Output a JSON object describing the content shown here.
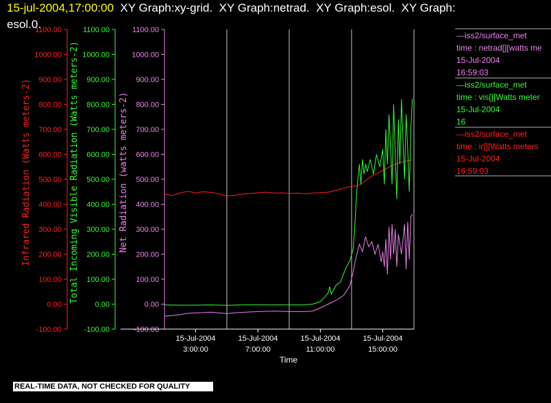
{
  "header": {
    "timestamp": "15-jul-2004,17:00:00",
    "line1_rest": "  XY Graph:xy-grid.  XY Graph:netrad.  XY Graph:esol.  XY Graph:",
    "line2": "esol.0."
  },
  "quality_banner": "REAL-TIME DATA, NOT CHECKED FOR QUALITY",
  "colors": {
    "ir": "#ff2020",
    "vis": "#33ff33",
    "net": "#ee82ee",
    "grid": "#c8c8c8",
    "axis": "#ffffff"
  },
  "legend": [
    {
      "line1": "—iss2/surface_met",
      "line2": "time : netrad[][watts me",
      "line3": "15-Jul-2004",
      "line4": "16:59:03",
      "color": "#ee82ee"
    },
    {
      "line1": "—iss2/surface_met",
      "line2": "time : vis[][Watts meter",
      "line3": "15-Jul-2004",
      "line4": "16",
      "color": "#33ff33"
    },
    {
      "line1": "—iss2/surface_met",
      "line2": "time : ir[][Watts meters",
      "line3": "15-Jul-2004",
      "line4": "16:59:03",
      "color": "#ff2020"
    }
  ],
  "chart_data": {
    "type": "line",
    "xlabel": "Time",
    "x_ticks": [
      {
        "date": "15-Jul-2004",
        "time": "3:00:00",
        "hour": 3
      },
      {
        "date": "15-Jul-2004",
        "time": "7:00:00",
        "hour": 7
      },
      {
        "date": "15-Jul-2004",
        "time": "11:00:00",
        "hour": 11
      },
      {
        "date": "15-Jul-2004",
        "time": "15:00:00",
        "hour": 15
      }
    ],
    "xlim": [
      1,
      17
    ],
    "ylim": [
      -100,
      1100
    ],
    "y_ticks": [
      "-100.00",
      "0.00",
      "100.00",
      "200.00",
      "300.00",
      "400.00",
      "500.00",
      "600.00",
      "700.00",
      "800.00",
      "900.00",
      "1000.00",
      "1100.00"
    ],
    "axes": [
      {
        "id": "ir",
        "label": "Infrared Radiation (Watts meters-2)",
        "color": "#ff2020"
      },
      {
        "id": "vis",
        "label": "Total Incoming Visible Radiation (Watts meters-2)",
        "color": "#33ff33"
      },
      {
        "id": "net",
        "label": "Net Radiation (watts meters-2)",
        "color": "#ee82ee"
      }
    ],
    "vertical_grid_hours": [
      5,
      9,
      13,
      17
    ],
    "series": [
      {
        "id": "ir",
        "color": "#ff2020",
        "points": [
          [
            1.0,
            440
          ],
          [
            1.5,
            435
          ],
          [
            2.0,
            445
          ],
          [
            2.5,
            452
          ],
          [
            3.0,
            445
          ],
          [
            3.5,
            450
          ],
          [
            4.0,
            447
          ],
          [
            4.5,
            442
          ],
          [
            5.0,
            433
          ],
          [
            5.5,
            436
          ],
          [
            6.0,
            440
          ],
          [
            6.5,
            443
          ],
          [
            7.0,
            446
          ],
          [
            7.5,
            448
          ],
          [
            8.0,
            445
          ],
          [
            8.5,
            446
          ],
          [
            9.0,
            443
          ],
          [
            9.5,
            445
          ],
          [
            10.0,
            442
          ],
          [
            10.5,
            445
          ],
          [
            11.0,
            446
          ],
          [
            11.5,
            448
          ],
          [
            12.0,
            455
          ],
          [
            12.5,
            465
          ],
          [
            13.0,
            472
          ],
          [
            13.3,
            473
          ],
          [
            13.6,
            480
          ],
          [
            14.0,
            500
          ],
          [
            14.5,
            520
          ],
          [
            15.0,
            535
          ],
          [
            15.5,
            552
          ],
          [
            16.0,
            565
          ],
          [
            16.5,
            573
          ],
          [
            16.9,
            577
          ]
        ]
      },
      {
        "id": "vis",
        "color": "#33ff33",
        "points": [
          [
            1.0,
            -3
          ],
          [
            2.0,
            -4
          ],
          [
            3.0,
            -4
          ],
          [
            4.0,
            -3
          ],
          [
            5.0,
            -5
          ],
          [
            6.0,
            -3
          ],
          [
            7.0,
            -3
          ],
          [
            8.0,
            -3
          ],
          [
            9.0,
            -3
          ],
          [
            10.0,
            -3
          ],
          [
            10.5,
            0
          ],
          [
            11.0,
            10
          ],
          [
            11.3,
            30
          ],
          [
            11.5,
            45
          ],
          [
            11.6,
            70
          ],
          [
            11.7,
            40
          ],
          [
            12.0,
            75
          ],
          [
            12.3,
            90
          ],
          [
            12.6,
            140
          ],
          [
            12.9,
            175
          ],
          [
            13.1,
            220
          ],
          [
            13.2,
            300
          ],
          [
            13.3,
            420
          ],
          [
            13.4,
            500
          ],
          [
            13.5,
            560
          ],
          [
            13.6,
            480
          ],
          [
            13.7,
            580
          ],
          [
            13.8,
            520
          ],
          [
            13.9,
            560
          ],
          [
            14.0,
            530
          ],
          [
            14.2,
            580
          ],
          [
            14.4,
            520
          ],
          [
            14.6,
            600
          ],
          [
            14.8,
            550
          ],
          [
            15.0,
            620
          ],
          [
            15.1,
            480
          ],
          [
            15.2,
            700
          ],
          [
            15.3,
            560
          ],
          [
            15.4,
            760
          ],
          [
            15.5,
            620
          ],
          [
            15.6,
            480
          ],
          [
            15.7,
            800
          ],
          [
            15.8,
            600
          ],
          [
            15.9,
            420
          ],
          [
            16.0,
            740
          ],
          [
            16.1,
            560
          ],
          [
            16.2,
            820
          ],
          [
            16.3,
            650
          ],
          [
            16.4,
            500
          ],
          [
            16.5,
            760
          ],
          [
            16.6,
            620
          ],
          [
            16.7,
            450
          ],
          [
            16.8,
            700
          ],
          [
            16.9,
            822
          ]
        ]
      },
      {
        "id": "net",
        "color": "#ee82ee",
        "points": [
          [
            1.0,
            -48
          ],
          [
            1.5,
            -46
          ],
          [
            2.0,
            -42
          ],
          [
            2.5,
            -37
          ],
          [
            3.0,
            -35
          ],
          [
            3.5,
            -34
          ],
          [
            4.0,
            -32
          ],
          [
            5.0,
            -38
          ],
          [
            5.5,
            -35
          ],
          [
            6.0,
            -33
          ],
          [
            7.0,
            -30
          ],
          [
            8.0,
            -28
          ],
          [
            9.0,
            -30
          ],
          [
            10.0,
            -30
          ],
          [
            10.5,
            -28
          ],
          [
            11.0,
            -15
          ],
          [
            11.5,
            0
          ],
          [
            12.0,
            15
          ],
          [
            12.5,
            35
          ],
          [
            12.9,
            75
          ],
          [
            13.1,
            130
          ],
          [
            13.3,
            190
          ],
          [
            13.5,
            240
          ],
          [
            13.7,
            210
          ],
          [
            13.9,
            270
          ],
          [
            14.1,
            230
          ],
          [
            14.3,
            250
          ],
          [
            14.5,
            200
          ],
          [
            14.7,
            240
          ],
          [
            14.9,
            170
          ],
          [
            15.0,
            210
          ],
          [
            15.1,
            150
          ],
          [
            15.2,
            260
          ],
          [
            15.3,
            120
          ],
          [
            15.4,
            310
          ],
          [
            15.5,
            180
          ],
          [
            15.6,
            320
          ],
          [
            15.7,
            200
          ],
          [
            15.8,
            300
          ],
          [
            15.9,
            150
          ],
          [
            16.0,
            280
          ],
          [
            16.2,
            200
          ],
          [
            16.4,
            320
          ],
          [
            16.5,
            140
          ],
          [
            16.6,
            330
          ],
          [
            16.7,
            180
          ],
          [
            16.8,
            350
          ],
          [
            16.9,
            360
          ]
        ]
      }
    ]
  }
}
